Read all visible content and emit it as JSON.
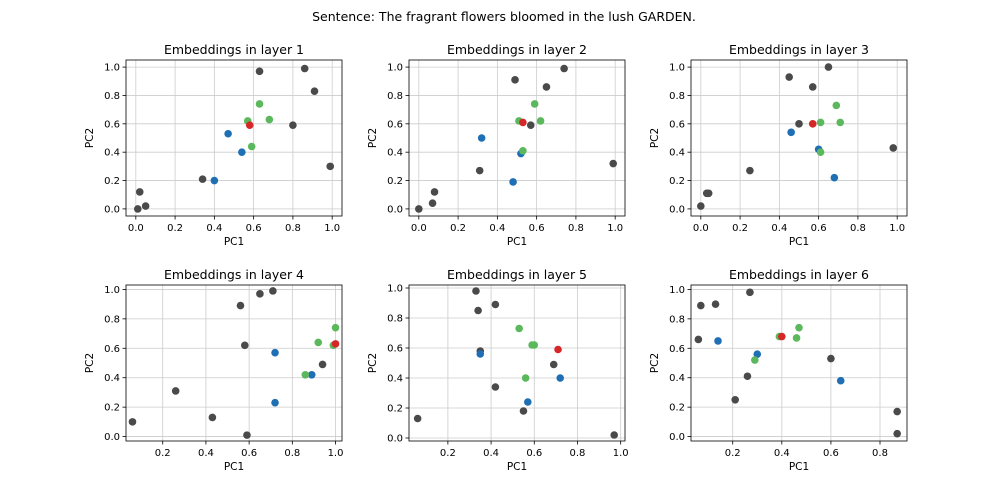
{
  "figure": {
    "suptitle": "Sentence: The fragrant flowers bloomed in the lush GARDEN."
  },
  "colors": {
    "other": "#4a4a4a",
    "blue": "#1f6fb4",
    "green": "#5cb85c",
    "red": "#d62728",
    "grid": "#cccccc",
    "axis": "#000000"
  },
  "chart_data": [
    {
      "type": "scatter",
      "title": "Embeddings in layer 1",
      "xlabel": "PC1",
      "ylabel": "PC2",
      "xlim": [
        -0.05,
        1.05
      ],
      "ylim": [
        -0.05,
        1.05
      ],
      "xticks": [
        "0.0",
        "0.2",
        "0.4",
        "0.6",
        "0.8",
        "1.0"
      ],
      "yticks": [
        "0.0",
        "0.2",
        "0.4",
        "0.6",
        "0.8",
        "1.0"
      ],
      "grid": true,
      "series": [
        {
          "group": "other",
          "points": [
            [
              0.01,
              0.0
            ],
            [
              0.02,
              0.12
            ],
            [
              0.05,
              0.02
            ],
            [
              0.34,
              0.21
            ],
            [
              0.63,
              0.97
            ],
            [
              0.8,
              0.59
            ],
            [
              0.86,
              0.99
            ],
            [
              0.91,
              0.83
            ],
            [
              0.99,
              0.3
            ]
          ]
        },
        {
          "group": "blue",
          "points": [
            [
              0.47,
              0.53
            ],
            [
              0.54,
              0.4
            ],
            [
              0.4,
              0.2
            ]
          ]
        },
        {
          "group": "green",
          "points": [
            [
              0.57,
              0.62
            ],
            [
              0.59,
              0.44
            ],
            [
              0.63,
              0.74
            ],
            [
              0.68,
              0.63
            ]
          ]
        },
        {
          "group": "red",
          "points": [
            [
              0.58,
              0.59
            ]
          ]
        }
      ]
    },
    {
      "type": "scatter",
      "title": "Embeddings in layer 2",
      "xlabel": "PC1",
      "ylabel": "PC2",
      "xlim": [
        -0.05,
        1.05
      ],
      "ylim": [
        -0.05,
        1.05
      ],
      "xticks": [
        "0.0",
        "0.2",
        "0.4",
        "0.6",
        "0.8",
        "1.0"
      ],
      "yticks": [
        "0.0",
        "0.2",
        "0.4",
        "0.6",
        "0.8",
        "1.0"
      ],
      "grid": true,
      "series": [
        {
          "group": "other",
          "points": [
            [
              0.0,
              0.0
            ],
            [
              0.07,
              0.04
            ],
            [
              0.08,
              0.12
            ],
            [
              0.31,
              0.27
            ],
            [
              0.49,
              0.91
            ],
            [
              0.57,
              0.59
            ],
            [
              0.65,
              0.86
            ],
            [
              0.74,
              0.99
            ],
            [
              0.99,
              0.32
            ]
          ]
        },
        {
          "group": "blue",
          "points": [
            [
              0.32,
              0.5
            ],
            [
              0.48,
              0.19
            ],
            [
              0.52,
              0.39
            ]
          ]
        },
        {
          "group": "green",
          "points": [
            [
              0.51,
              0.62
            ],
            [
              0.53,
              0.41
            ],
            [
              0.59,
              0.74
            ],
            [
              0.62,
              0.62
            ]
          ]
        },
        {
          "group": "red",
          "points": [
            [
              0.53,
              0.61
            ]
          ]
        }
      ]
    },
    {
      "type": "scatter",
      "title": "Embeddings in layer 3",
      "xlabel": "PC1",
      "ylabel": "PC2",
      "xlim": [
        -0.05,
        1.05
      ],
      "ylim": [
        -0.05,
        1.05
      ],
      "xticks": [
        "0.0",
        "0.2",
        "0.4",
        "0.6",
        "0.8",
        "1.0"
      ],
      "yticks": [
        "0.0",
        "0.2",
        "0.4",
        "0.6",
        "0.8",
        "1.0"
      ],
      "grid": true,
      "series": [
        {
          "group": "other",
          "points": [
            [
              0.0,
              0.02
            ],
            [
              0.03,
              0.11
            ],
            [
              0.04,
              0.11
            ],
            [
              0.25,
              0.27
            ],
            [
              0.45,
              0.93
            ],
            [
              0.5,
              0.6
            ],
            [
              0.57,
              0.86
            ],
            [
              0.65,
              1.0
            ],
            [
              0.98,
              0.43
            ]
          ]
        },
        {
          "group": "blue",
          "points": [
            [
              0.46,
              0.54
            ],
            [
              0.6,
              0.42
            ],
            [
              0.68,
              0.22
            ]
          ]
        },
        {
          "group": "green",
          "points": [
            [
              0.61,
              0.61
            ],
            [
              0.61,
              0.4
            ],
            [
              0.69,
              0.73
            ],
            [
              0.71,
              0.61
            ]
          ]
        },
        {
          "group": "red",
          "points": [
            [
              0.57,
              0.6
            ]
          ]
        }
      ]
    },
    {
      "type": "scatter",
      "title": "Embeddings in layer 4",
      "xlabel": "PC1",
      "ylabel": "PC2",
      "xlim": [
        0.03,
        1.03
      ],
      "ylim": [
        -0.03,
        1.03
      ],
      "xticks": [
        "0.2",
        "0.4",
        "0.6",
        "0.8",
        "1.0"
      ],
      "yticks": [
        "0.0",
        "0.2",
        "0.4",
        "0.6",
        "0.8",
        "1.0"
      ],
      "grid": true,
      "series": [
        {
          "group": "other",
          "points": [
            [
              0.06,
              0.1
            ],
            [
              0.26,
              0.31
            ],
            [
              0.43,
              0.13
            ],
            [
              0.56,
              0.89
            ],
            [
              0.58,
              0.62
            ],
            [
              0.59,
              0.01
            ],
            [
              0.65,
              0.97
            ],
            [
              0.71,
              0.99
            ],
            [
              0.94,
              0.49
            ]
          ]
        },
        {
          "group": "blue",
          "points": [
            [
              0.72,
              0.57
            ],
            [
              0.72,
              0.23
            ],
            [
              0.89,
              0.42
            ]
          ]
        },
        {
          "group": "green",
          "points": [
            [
              0.86,
              0.42
            ],
            [
              0.92,
              0.64
            ],
            [
              0.99,
              0.62
            ],
            [
              1.0,
              0.74
            ]
          ]
        },
        {
          "group": "red",
          "points": [
            [
              1.0,
              0.63
            ]
          ]
        }
      ]
    },
    {
      "type": "scatter",
      "title": "Embeddings in layer 5",
      "xlabel": "PC1",
      "ylabel": "PC2",
      "xlim": [
        0.02,
        1.02
      ],
      "ylim": [
        -0.02,
        1.02
      ],
      "xticks": [
        "0.2",
        "0.4",
        "0.6",
        "0.8",
        "1.0"
      ],
      "yticks": [
        "0.0",
        "0.2",
        "0.4",
        "0.6",
        "0.8",
        "1.0"
      ],
      "grid": true,
      "series": [
        {
          "group": "other",
          "points": [
            [
              0.06,
              0.13
            ],
            [
              0.33,
              0.98
            ],
            [
              0.34,
              0.85
            ],
            [
              0.35,
              0.58
            ],
            [
              0.42,
              0.89
            ],
            [
              0.42,
              0.34
            ],
            [
              0.55,
              0.18
            ],
            [
              0.69,
              0.49
            ],
            [
              0.97,
              0.02
            ]
          ]
        },
        {
          "group": "blue",
          "points": [
            [
              0.35,
              0.56
            ],
            [
              0.57,
              0.24
            ],
            [
              0.72,
              0.4
            ]
          ]
        },
        {
          "group": "green",
          "points": [
            [
              0.53,
              0.73
            ],
            [
              0.56,
              0.4
            ],
            [
              0.59,
              0.62
            ],
            [
              0.6,
              0.62
            ]
          ]
        },
        {
          "group": "red",
          "points": [
            [
              0.71,
              0.59
            ]
          ]
        }
      ]
    },
    {
      "type": "scatter",
      "title": "Embeddings in layer 6",
      "xlabel": "PC1",
      "ylabel": "PC2",
      "xlim": [
        0.03,
        0.91
      ],
      "ylim": [
        -0.03,
        1.03
      ],
      "xticks": [
        "0.2",
        "0.4",
        "0.6",
        "0.8"
      ],
      "yticks": [
        "0.0",
        "0.2",
        "0.4",
        "0.6",
        "0.8",
        "1.0"
      ],
      "grid": true,
      "series": [
        {
          "group": "other",
          "points": [
            [
              0.06,
              0.66
            ],
            [
              0.07,
              0.89
            ],
            [
              0.13,
              0.9
            ],
            [
              0.21,
              0.25
            ],
            [
              0.26,
              0.41
            ],
            [
              0.27,
              0.98
            ],
            [
              0.6,
              0.53
            ],
            [
              0.87,
              0.17
            ],
            [
              0.87,
              0.02
            ]
          ]
        },
        {
          "group": "blue",
          "points": [
            [
              0.14,
              0.65
            ],
            [
              0.3,
              0.56
            ],
            [
              0.64,
              0.38
            ]
          ]
        },
        {
          "group": "green",
          "points": [
            [
              0.29,
              0.52
            ],
            [
              0.39,
              0.68
            ],
            [
              0.46,
              0.67
            ],
            [
              0.47,
              0.74
            ]
          ]
        },
        {
          "group": "red",
          "points": [
            [
              0.4,
              0.68
            ]
          ]
        }
      ]
    }
  ]
}
